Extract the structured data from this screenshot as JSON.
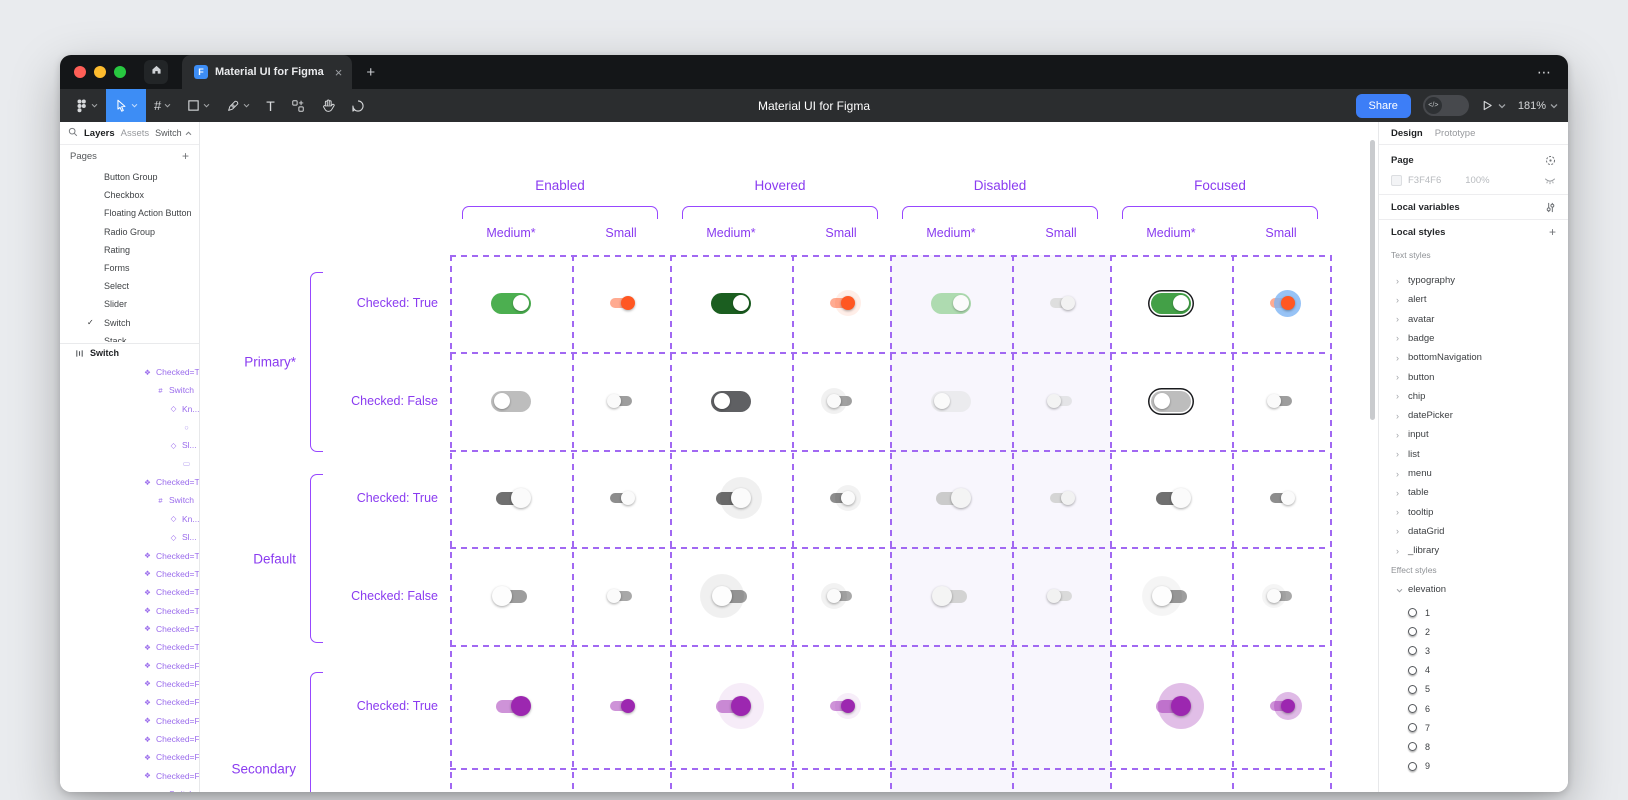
{
  "window": {
    "tab_title": "Material UI for Figma",
    "new_tab_label": "+",
    "overflow_label": "⋯",
    "toolbar": {
      "title": "Material UI for Figma",
      "share_label": "Share",
      "dev_toggle_label": "</>",
      "zoom_level": "181%",
      "tools": [
        "figma-menu",
        "move-tool",
        "frame-tool",
        "shape-tool",
        "pen-tool",
        "text-tool",
        "actions-tool",
        "hand-tool",
        "comment-tool"
      ],
      "active_tool": "move-tool"
    }
  },
  "left_panel": {
    "tabs": {
      "layers": "Layers",
      "assets": "Assets",
      "page_picker": "Switch"
    },
    "pages_header": "Pages",
    "add_label": "+",
    "pages": [
      "Button Group",
      "Checkbox",
      "Floating Action Button",
      "Radio Group",
      "Rating",
      "Forms",
      "Select",
      "Slider",
      "Switch",
      "Stack"
    ],
    "current_page": "Switch",
    "section_label": "Switch",
    "layers": [
      {
        "icon": "component",
        "label": "Checked=T...",
        "depth": 2
      },
      {
        "icon": "frame",
        "label": "Switch",
        "depth": 3
      },
      {
        "icon": "instance",
        "label": "Kn...",
        "depth": 4
      },
      {
        "icon": "ellipse",
        "label": "",
        "depth": 5
      },
      {
        "icon": "instance",
        "label": "Sl...",
        "depth": 4
      },
      {
        "icon": "rect",
        "label": "",
        "depth": 5
      },
      {
        "icon": "component",
        "label": "Checked=T...",
        "depth": 2
      },
      {
        "icon": "frame",
        "label": "Switch",
        "depth": 3
      },
      {
        "icon": "instance",
        "label": "Kn...",
        "depth": 4
      },
      {
        "icon": "instance",
        "label": "Sl...",
        "depth": 4
      },
      {
        "icon": "component",
        "label": "Checked=T...",
        "depth": 2
      },
      {
        "icon": "component",
        "label": "Checked=T...",
        "depth": 2
      },
      {
        "icon": "component",
        "label": "Checked=T...",
        "depth": 2
      },
      {
        "icon": "component",
        "label": "Checked=T...",
        "depth": 2
      },
      {
        "icon": "component",
        "label": "Checked=T...",
        "depth": 2
      },
      {
        "icon": "component",
        "label": "Checked=T...",
        "depth": 2
      },
      {
        "icon": "component",
        "label": "Checked=F...",
        "depth": 2
      },
      {
        "icon": "component",
        "label": "Checked=F...",
        "depth": 2
      },
      {
        "icon": "component",
        "label": "Checked=F...",
        "depth": 2
      },
      {
        "icon": "component",
        "label": "Checked=F...",
        "depth": 2
      },
      {
        "icon": "component",
        "label": "Checked=F...",
        "depth": 2
      },
      {
        "icon": "component",
        "label": "Checked=F...",
        "depth": 2
      },
      {
        "icon": "component",
        "label": "Checked=F...",
        "depth": 2
      },
      {
        "icon": "frame",
        "label": "Switch",
        "depth": 3
      }
    ]
  },
  "canvas": {
    "column_groups": [
      "Enabled",
      "Hovered",
      "Disabled",
      "Focused"
    ],
    "column_sizes": [
      "Medium*",
      "Small",
      "Medium*",
      "Small",
      "Medium*",
      "Small",
      "Medium*",
      "Small"
    ],
    "row_groups": [
      "Primary*",
      "Default",
      "Secondary"
    ],
    "row_labels": [
      "Checked: True",
      "Checked: False",
      "Checked: True",
      "Checked: False",
      "Checked: True"
    ],
    "colors": {
      "accent_purple": "#8a3bf0",
      "dash_purple": "#a168f2",
      "bracket_purple": "#9747ff",
      "disabled_bg": "#f8f6fd",
      "primary_green": "#4caf50",
      "primary_green_hover": "#1b5e20",
      "small_orange_track": "#ffab91",
      "small_orange_thumb": "#ff5722",
      "secondary_purple_track": "#ce93d8",
      "secondary_purple_thumb": "#9c27b0"
    },
    "cells": [
      [
        {
          "v": "pill-md",
          "t": "#4caf50",
          "th": "#ffffff",
          "on": true
        },
        {
          "v": "cl-sm",
          "t": "#ffab91",
          "th": "#ff5722",
          "on": true
        },
        {
          "v": "pill-md",
          "t": "#1b5e20",
          "th": "#ffffff",
          "on": true
        },
        {
          "v": "cl-sm",
          "t": "#ffab91",
          "th": "#ff5722",
          "on": true,
          "h": "rgba(255,87,34,0.10)",
          "hs": 26
        },
        {
          "v": "pill-md",
          "t": "#aedbb0",
          "th": "#fbfbfb",
          "on": true
        },
        {
          "v": "cl-sm",
          "t": "#dedede",
          "th": "#f2f2f2",
          "on": true
        },
        {
          "v": "pill-md",
          "t": "#43a047",
          "th": "#ffffff",
          "on": true,
          "r": true
        },
        {
          "v": "cl-sm",
          "t": "#ffab91",
          "th": "#ff5722",
          "on": true,
          "h": "rgba(125,180,244,0.80)",
          "hs": 27
        }
      ],
      [
        {
          "v": "pill-md",
          "t": "#bdbdbd",
          "th": "#ffffff",
          "on": false
        },
        {
          "v": "cl-sm",
          "t": "#9e9e9e",
          "th": "#fafafa",
          "on": false
        },
        {
          "v": "pill-md",
          "t": "#5f6063",
          "th": "#ffffff",
          "on": false
        },
        {
          "v": "cl-sm",
          "t": "#9e9e9e",
          "th": "#fafafa",
          "on": false,
          "h": "rgba(180,180,180,0.18)",
          "hs": 26
        },
        {
          "v": "pill-md",
          "t": "#ebebee",
          "th": "#fafafa",
          "on": false
        },
        {
          "v": "cl-sm",
          "t": "#e4e4e7",
          "th": "#f3f3f3",
          "on": false
        },
        {
          "v": "pill-md",
          "t": "#bdbdbd",
          "th": "#ffffff",
          "on": false,
          "r": true
        },
        {
          "v": "cl-sm",
          "t": "#9e9e9e",
          "th": "#fafafa",
          "on": false
        }
      ],
      [
        {
          "v": "cl-md",
          "t": "#707070",
          "th": "#fbfbfb",
          "on": true
        },
        {
          "v": "cl-sm",
          "t": "#8d8d8d",
          "th": "#fbfbfb",
          "on": true
        },
        {
          "v": "cl-md",
          "t": "#707070",
          "th": "#fbfbfb",
          "on": true,
          "h": "rgba(0,0,0,0.06)",
          "hs": 42
        },
        {
          "v": "cl-sm",
          "t": "#8d8d8d",
          "th": "#fbfbfb",
          "on": true,
          "h": "rgba(0,0,0,0.05)",
          "hs": 26
        },
        {
          "v": "cl-md",
          "t": "#cbcbcb",
          "th": "#f4f4f4",
          "on": true
        },
        {
          "v": "cl-sm",
          "t": "#d5d5d5",
          "th": "#f2f2f2",
          "on": true
        },
        {
          "v": "cl-md",
          "t": "#707070",
          "th": "#fbfbfb",
          "on": true
        },
        {
          "v": "cl-sm",
          "t": "#8d8d8d",
          "th": "#fbfbfb",
          "on": true
        }
      ],
      [
        {
          "v": "cl-md",
          "t": "#9d9d9d",
          "th": "#fdfdfd",
          "on": false
        },
        {
          "v": "cl-sm",
          "t": "#a8a8a8",
          "th": "#fbfbfb",
          "on": false
        },
        {
          "v": "cl-md",
          "t": "#9d9d9d",
          "th": "#fdfdfd",
          "on": false,
          "h": "rgba(0,0,0,0.06)",
          "hs": 44
        },
        {
          "v": "cl-sm",
          "t": "#a8a8a8",
          "th": "#fbfbfb",
          "on": false,
          "h": "rgba(0,0,0,0.05)",
          "hs": 26
        },
        {
          "v": "cl-md",
          "t": "#d3d3d3",
          "th": "#f4f4f4",
          "on": false
        },
        {
          "v": "cl-sm",
          "t": "#dadada",
          "th": "#f2f2f2",
          "on": false
        },
        {
          "v": "cl-md",
          "t": "#9d9d9d",
          "th": "#fdfdfd",
          "on": false,
          "h": "rgba(0,0,0,0.04)",
          "hs": 40
        },
        {
          "v": "cl-sm",
          "t": "#a8a8a8",
          "th": "#fbfbfb",
          "on": false,
          "h": "rgba(0,0,0,0.04)",
          "hs": 24
        }
      ],
      [
        {
          "v": "cl-md",
          "t": "#ce93d8",
          "th": "#9c27b0",
          "on": true
        },
        {
          "v": "cl-sm",
          "t": "#ce93d8",
          "th": "#9c27b0",
          "on": true
        },
        {
          "v": "cl-md",
          "t": "#ce93d8",
          "th": "#9c27b0",
          "on": true,
          "h": "rgba(156,39,176,0.09)",
          "hs": 46
        },
        {
          "v": "cl-sm",
          "t": "#ce93d8",
          "th": "#9c27b0",
          "on": true,
          "h": "rgba(156,39,176,0.08)",
          "hs": 26
        },
        null,
        null,
        {
          "v": "cl-md",
          "t": "#ce93d8",
          "th": "#9c27b0",
          "on": true,
          "h": "rgba(156,39,176,0.30)",
          "hs": 46
        },
        {
          "v": "cl-sm",
          "t": "#ce93d8",
          "th": "#9c27b0",
          "on": true,
          "h": "rgba(156,39,176,0.32)",
          "hs": 28
        }
      ]
    ]
  },
  "right_panel": {
    "tabs": {
      "design": "Design",
      "prototype": "Prototype"
    },
    "page_section": {
      "label": "Page",
      "color_hex": "F3F4F6",
      "opacity": "100%"
    },
    "local_variables_label": "Local variables",
    "local_styles_label": "Local styles",
    "add_label": "+",
    "text_styles_label": "Text styles",
    "text_styles": [
      "typography",
      "alert",
      "avatar",
      "badge",
      "bottomNavigation",
      "button",
      "chip",
      "datePicker",
      "input",
      "list",
      "menu",
      "table",
      "tooltip",
      "dataGrid",
      "_library"
    ],
    "effect_styles_label": "Effect styles",
    "effect_group_label": "elevation",
    "effect_items": [
      "1",
      "2",
      "3",
      "4",
      "5",
      "6",
      "7",
      "8",
      "9"
    ]
  }
}
